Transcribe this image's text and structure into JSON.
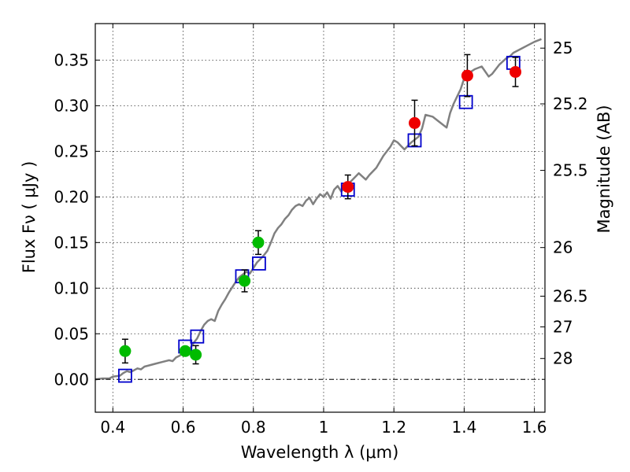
{
  "chart_data": {
    "type": "scatter",
    "title": "",
    "xlabel": "Wavelength  λ (μm)",
    "ylabel": "Flux  Fν  ( μJy )",
    "ylabel_right": "Magnitude (AB)",
    "xlim": [
      0.35,
      1.63
    ],
    "ylim": [
      -0.036,
      0.39
    ],
    "grid": true,
    "x_ticks": [
      0.4,
      0.6,
      0.8,
      1.0,
      1.2,
      1.4,
      1.6
    ],
    "x_tick_labels": [
      "0.4",
      "0.6",
      "0.8",
      "1",
      "1.2",
      "1.4",
      "1.6"
    ],
    "y_ticks": [
      0.0,
      0.05,
      0.1,
      0.15,
      0.2,
      0.25,
      0.3,
      0.35
    ],
    "y_tick_labels": [
      "0.00",
      "0.05",
      "0.10",
      "0.15",
      "0.20",
      "0.25",
      "0.30",
      "0.35"
    ],
    "right_ticks": [
      {
        "label": "25",
        "flux": 0.3631
      },
      {
        "label": "25.2",
        "flux": 0.302
      },
      {
        "label": "25.5",
        "flux": 0.2291
      },
      {
        "label": "26",
        "flux": 0.1445
      },
      {
        "label": "26.5",
        "flux": 0.0912
      },
      {
        "label": "27",
        "flux": 0.0575
      },
      {
        "label": "28",
        "flux": 0.0229
      }
    ],
    "colors": {
      "model": "#808080",
      "optical": "#00bb00",
      "nir": "#ee0000",
      "synthetic": "#0000cc",
      "zero_line": "#000000"
    },
    "series": [
      {
        "type": "line",
        "role": "model",
        "x": [
          0.35,
          0.37,
          0.39,
          0.4,
          0.42,
          0.43,
          0.44,
          0.45,
          0.46,
          0.47,
          0.48,
          0.49,
          0.5,
          0.52,
          0.54,
          0.56,
          0.57,
          0.58,
          0.59,
          0.6,
          0.61,
          0.62,
          0.63,
          0.64,
          0.65,
          0.66,
          0.67,
          0.68,
          0.69,
          0.7,
          0.71,
          0.72,
          0.73,
          0.74,
          0.75,
          0.76,
          0.77,
          0.78,
          0.79,
          0.8,
          0.81,
          0.82,
          0.83,
          0.84,
          0.85,
          0.86,
          0.87,
          0.88,
          0.89,
          0.9,
          0.91,
          0.92,
          0.93,
          0.94,
          0.95,
          0.96,
          0.97,
          0.98,
          0.99,
          1.0,
          1.01,
          1.02,
          1.03,
          1.04,
          1.05,
          1.06,
          1.08,
          1.1,
          1.12,
          1.13,
          1.15,
          1.17,
          1.19,
          1.2,
          1.21,
          1.23,
          1.24,
          1.25,
          1.27,
          1.28,
          1.29,
          1.31,
          1.33,
          1.35,
          1.36,
          1.37,
          1.39,
          1.4,
          1.41,
          1.43,
          1.45,
          1.47,
          1.48,
          1.5,
          1.52,
          1.53,
          1.54,
          1.56,
          1.58,
          1.6,
          1.62
        ],
        "y": [
          0.0,
          0.001,
          0.001,
          0.003,
          0.004,
          0.007,
          0.009,
          0.008,
          0.01,
          0.012,
          0.011,
          0.014,
          0.015,
          0.017,
          0.019,
          0.021,
          0.02,
          0.024,
          0.026,
          0.029,
          0.032,
          0.034,
          0.04,
          0.045,
          0.053,
          0.06,
          0.064,
          0.066,
          0.064,
          0.075,
          0.082,
          0.088,
          0.095,
          0.101,
          0.107,
          0.112,
          0.115,
          0.118,
          0.116,
          0.122,
          0.128,
          0.132,
          0.136,
          0.141,
          0.15,
          0.16,
          0.166,
          0.17,
          0.176,
          0.18,
          0.186,
          0.19,
          0.192,
          0.19,
          0.196,
          0.199,
          0.192,
          0.198,
          0.203,
          0.2,
          0.205,
          0.198,
          0.208,
          0.212,
          0.206,
          0.21,
          0.218,
          0.226,
          0.219,
          0.224,
          0.232,
          0.245,
          0.255,
          0.262,
          0.26,
          0.252,
          0.256,
          0.26,
          0.266,
          0.275,
          0.29,
          0.288,
          0.282,
          0.276,
          0.292,
          0.302,
          0.318,
          0.33,
          0.335,
          0.34,
          0.343,
          0.332,
          0.335,
          0.345,
          0.352,
          0.354,
          0.358,
          0.362,
          0.366,
          0.37,
          0.373
        ]
      },
      {
        "type": "scatter",
        "role": "optical",
        "marker": "circle",
        "x": [
          0.435,
          0.606,
          0.636,
          0.775,
          0.814
        ],
        "y": [
          0.031,
          0.031,
          0.027,
          0.108,
          0.15
        ],
        "yerr": [
          0.013,
          0.0,
          0.01,
          0.012,
          0.013
        ]
      },
      {
        "type": "scatter",
        "role": "nir",
        "marker": "circle",
        "x": [
          1.069,
          1.259,
          1.409,
          1.546
        ],
        "y": [
          0.211,
          0.281,
          0.333,
          0.337
        ],
        "yerr": [
          0.013,
          0.025,
          0.023,
          0.016
        ]
      },
      {
        "type": "scatter",
        "role": "synthetic",
        "marker": "open-square",
        "x": [
          0.435,
          0.606,
          0.64,
          0.768,
          0.816,
          1.069,
          1.259,
          1.405,
          1.54
        ],
        "y": [
          0.004,
          0.036,
          0.047,
          0.113,
          0.127,
          0.208,
          0.262,
          0.304,
          0.347
        ]
      }
    ]
  }
}
